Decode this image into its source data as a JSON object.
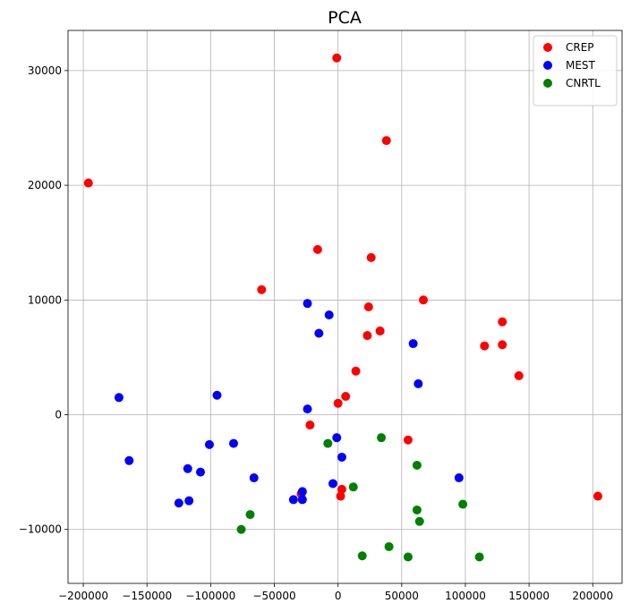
{
  "chart_data": {
    "type": "scatter",
    "title": "PCA",
    "xlabel": "",
    "ylabel": "",
    "xlim": [
      -212000,
      223000
    ],
    "ylim": [
      -14700,
      33500
    ],
    "xticks": [
      -200000,
      -150000,
      -100000,
      -50000,
      0,
      50000,
      100000,
      150000,
      200000
    ],
    "yticks": [
      -10000,
      0,
      10000,
      20000,
      30000
    ],
    "grid": true,
    "legend_position": "top-right",
    "series": [
      {
        "name": "CREP",
        "color": "#ff0000",
        "points": [
          [
            -1000,
            31100
          ],
          [
            38000,
            23900
          ],
          [
            -196000,
            20200
          ],
          [
            -16000,
            14400
          ],
          [
            26000,
            13700
          ],
          [
            -60000,
            10900
          ],
          [
            67000,
            10000
          ],
          [
            24000,
            9400
          ],
          [
            129000,
            8100
          ],
          [
            33000,
            7300
          ],
          [
            23000,
            6900
          ],
          [
            115000,
            6000
          ],
          [
            129000,
            6100
          ],
          [
            14000,
            3800
          ],
          [
            142000,
            3400
          ],
          [
            6000,
            1600
          ],
          [
            0,
            1000
          ],
          [
            -22000,
            -900
          ],
          [
            55000,
            -2200
          ],
          [
            3000,
            -6500
          ],
          [
            2000,
            -7100
          ],
          [
            -29000,
            -6900
          ],
          [
            204000,
            -7100
          ]
        ]
      },
      {
        "name": "MEST",
        "color": "#0000ff",
        "points": [
          [
            -24000,
            9700
          ],
          [
            -7000,
            8700
          ],
          [
            -15000,
            7100
          ],
          [
            59000,
            6200
          ],
          [
            -172000,
            1500
          ],
          [
            -95000,
            1700
          ],
          [
            63000,
            2700
          ],
          [
            -24000,
            500
          ],
          [
            -1000,
            -2000
          ],
          [
            -101000,
            -2600
          ],
          [
            -82000,
            -2500
          ],
          [
            3000,
            -3700
          ],
          [
            -164000,
            -4000
          ],
          [
            -118000,
            -4700
          ],
          [
            -108000,
            -5000
          ],
          [
            -66000,
            -5500
          ],
          [
            -4000,
            -6000
          ],
          [
            -28000,
            -6700
          ],
          [
            -35000,
            -7400
          ],
          [
            -28000,
            -7400
          ],
          [
            -125000,
            -7700
          ],
          [
            -117000,
            -7500
          ],
          [
            95000,
            -5500
          ]
        ]
      },
      {
        "name": "CNRTL",
        "color": "#008000",
        "points": [
          [
            -8000,
            -2500
          ],
          [
            34000,
            -2000
          ],
          [
            62000,
            -4400
          ],
          [
            12000,
            -6300
          ],
          [
            -69000,
            -8700
          ],
          [
            -76000,
            -10000
          ],
          [
            62000,
            -8300
          ],
          [
            64000,
            -9300
          ],
          [
            98000,
            -7800
          ],
          [
            40000,
            -11500
          ],
          [
            19000,
            -12300
          ],
          [
            55000,
            -12400
          ],
          [
            111000,
            -12400
          ]
        ]
      }
    ]
  }
}
